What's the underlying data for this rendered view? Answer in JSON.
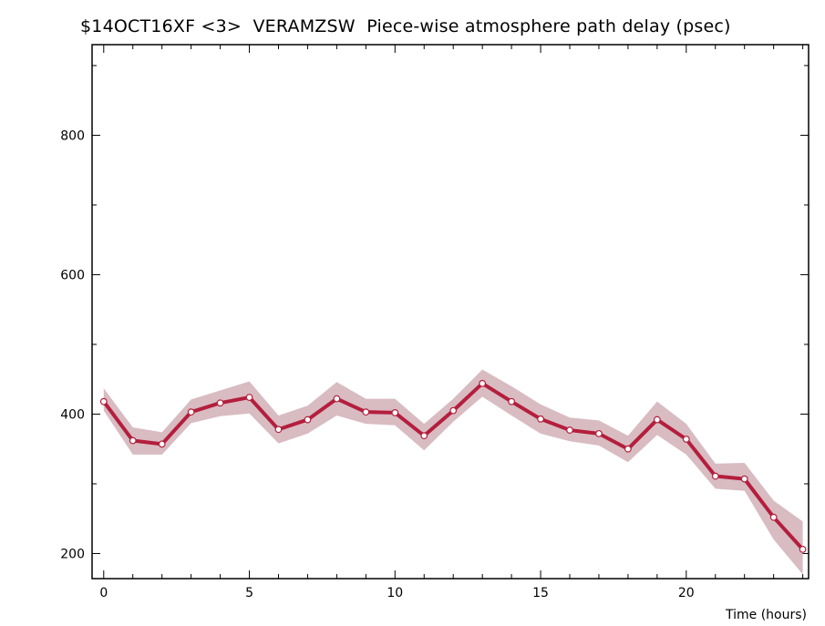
{
  "chart_data": {
    "type": "line",
    "title": "$14OCT16XF <3>  VERAMZSW  Piece-wise atmosphere path delay (psec)",
    "xlabel": "Time (hours)",
    "ylabel": "",
    "xlim": [
      -0.4,
      24.2
    ],
    "ylim": [
      164,
      930
    ],
    "x_ticks": [
      0,
      5,
      10,
      15,
      20
    ],
    "y_ticks": [
      200,
      400,
      600,
      800
    ],
    "series": [
      {
        "x": [
          0,
          1,
          2,
          3,
          4,
          5,
          6,
          7,
          8,
          9,
          10,
          11,
          12,
          13,
          14,
          15,
          16,
          17,
          18,
          19,
          20,
          21,
          22,
          23,
          24
        ],
        "values": [
          418,
          362,
          357,
          403,
          416,
          424,
          378,
          392,
          422,
          403,
          402,
          369,
          405,
          444,
          418,
          393,
          377,
          372,
          350,
          392,
          364,
          311,
          307,
          252,
          206
        ],
        "upper": [
          437,
          381,
          374,
          421,
          434,
          447,
          398,
          412,
          446,
          422,
          422,
          386,
          422,
          464,
          440,
          414,
          395,
          391,
          369,
          418,
          386,
          329,
          330,
          276,
          246
        ],
        "lower": [
          405,
          342,
          342,
          387,
          397,
          401,
          358,
          372,
          398,
          386,
          384,
          348,
          389,
          425,
          398,
          372,
          361,
          355,
          331,
          370,
          342,
          293,
          290,
          220,
          170
        ]
      }
    ],
    "line_color": "#b41e3c",
    "band_color": "#d8bcc2",
    "marker": "open-circle",
    "grid": false
  }
}
